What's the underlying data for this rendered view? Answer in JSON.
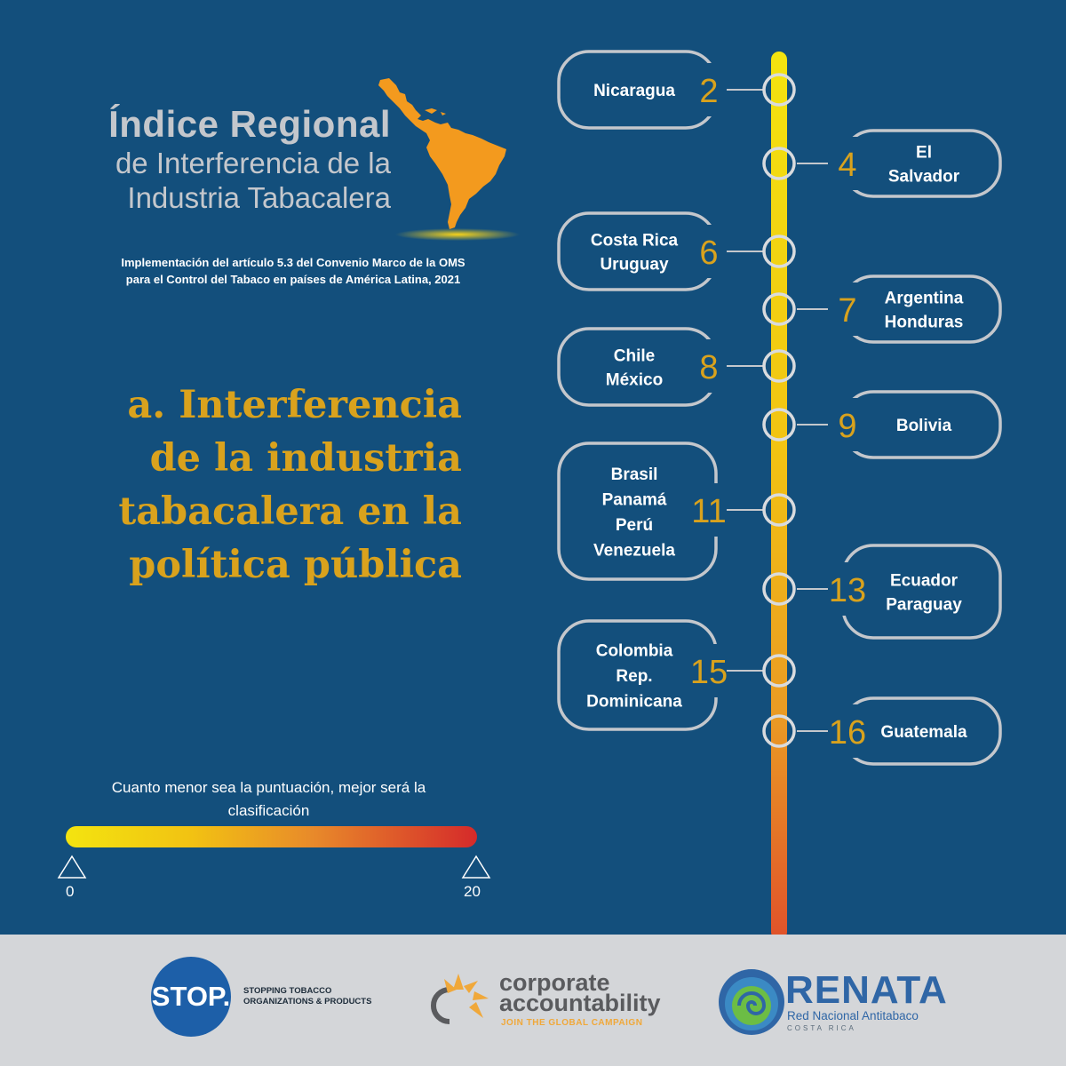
{
  "header": {
    "title_line1": "Índice Regional",
    "title_line2": "de Interferencia de la",
    "title_line3": "Industria Tabacalera",
    "subtitle_line1": "Implementación del artículo 5.3 del Convenio Marco de la OMS",
    "subtitle_line2": "para el Control del Tabaco en países de América Latina, 2021"
  },
  "section": {
    "line1": "a. Interferencia",
    "line2": "de la industria",
    "line3": "tabacalera en la",
    "line4": "política pública"
  },
  "scale": {
    "note_line1": "Cuanto menor sea la puntuación, mejor será la",
    "note_line2": "clasificación",
    "min_label": "0",
    "max_label": "20",
    "min": 0,
    "max": 20
  },
  "colors": {
    "background": "#134f7c",
    "accent": "#d9a21d",
    "map": "#f39a1e",
    "gradient_start": "#f3e410",
    "gradient_end": "#d52a2a",
    "outline": "#c4c7cc"
  },
  "chart_data": {
    "type": "timeline",
    "entries": [
      {
        "score": "2",
        "side": "left",
        "countries": [
          "Nicaragua"
        ]
      },
      {
        "score": "4",
        "side": "right",
        "countries": [
          "El",
          "Salvador"
        ]
      },
      {
        "score": "6",
        "side": "left",
        "countries": [
          "Costa Rica",
          "Uruguay"
        ]
      },
      {
        "score": "7",
        "side": "right",
        "countries": [
          "Argentina",
          "Honduras"
        ]
      },
      {
        "score": "8",
        "side": "left",
        "countries": [
          "Chile",
          "México"
        ]
      },
      {
        "score": "9",
        "side": "right",
        "countries": [
          "Bolivia"
        ]
      },
      {
        "score": "11",
        "side": "left",
        "countries": [
          "Brasil",
          "Panamá",
          "Perú",
          "Venezuela"
        ]
      },
      {
        "score": "13",
        "side": "right",
        "countries": [
          "Ecuador",
          "Paraguay"
        ]
      },
      {
        "score": "15",
        "side": "left",
        "countries": [
          "Colombia",
          "Rep.",
          "Dominicana"
        ]
      },
      {
        "score": "16",
        "side": "right",
        "countries": [
          "Guatemala"
        ]
      }
    ]
  },
  "footer": {
    "stop_logo": "STOP.",
    "stop_line1": "STOPPING TOBACCO",
    "stop_line2": "ORGANIZATIONS & PRODUCTS",
    "ca_line1": "corporate",
    "ca_line2": "accountability",
    "ca_tagline": "JOIN THE GLOBAL CAMPAIGN",
    "renata_name": "RENATA",
    "renata_sub": "Red Nacional Antitabaco",
    "renata_country": "COSTA RICA"
  }
}
